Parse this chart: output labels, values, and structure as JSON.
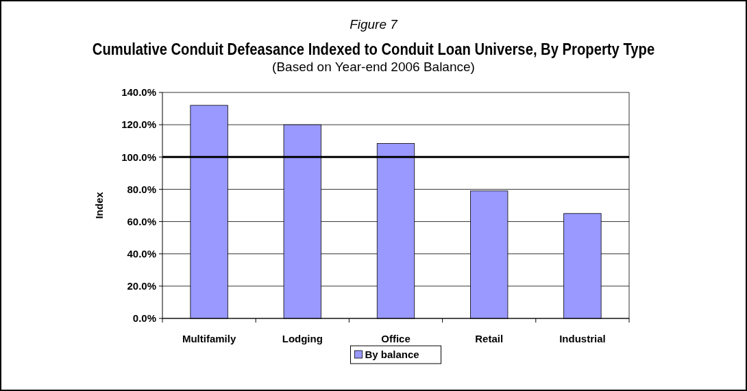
{
  "chart_data": {
    "type": "bar",
    "title": "Cumulative Conduit Defeasance Indexed to Conduit Loan Universe, By Property Type",
    "subtitle": "(Based on Year-end 2006 Balance)",
    "annotations": [
      "Figure 7"
    ],
    "ylabel": "Index",
    "categories": [
      "Multifamily",
      "Lodging",
      "Office",
      "Retail",
      "Industrial"
    ],
    "series": [
      {
        "name": "By balance",
        "color": "#9999ff",
        "values": [
          132,
          120,
          108.4,
          79,
          65
        ]
      }
    ],
    "ylim": [
      0,
      140
    ],
    "yticks": [
      {
        "value": 0,
        "label": "0.0%"
      },
      {
        "value": 20,
        "label": "20.0%"
      },
      {
        "value": 40,
        "label": "40.0%"
      },
      {
        "value": 60,
        "label": "60.0%"
      },
      {
        "value": 80,
        "label": "80.0%"
      },
      {
        "value": 100,
        "label": "100.0%"
      },
      {
        "value": 120,
        "label": "120.0%"
      },
      {
        "value": 140,
        "label": "140.0%"
      }
    ],
    "ref_lines": [
      {
        "axis": "y",
        "value": 100,
        "color": "#000000"
      }
    ],
    "grid": "y",
    "legend": "bottom"
  }
}
